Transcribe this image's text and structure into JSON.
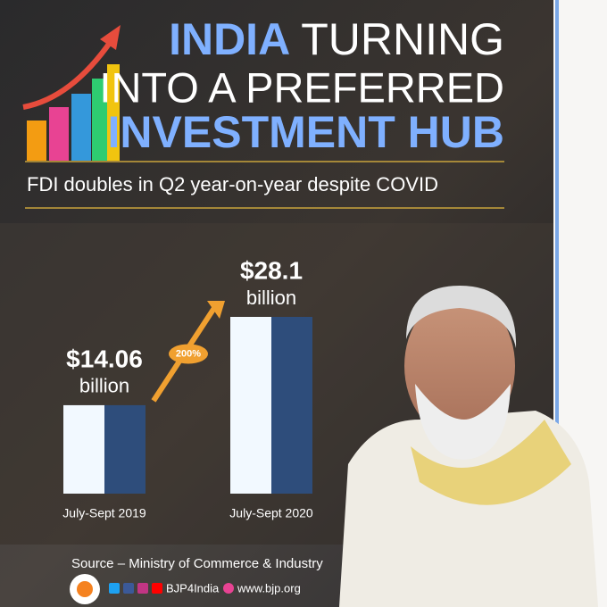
{
  "chart_data": {
    "type": "bar",
    "title_parts": [
      "INDIA",
      "TURNING",
      "INTO A PREFERRED",
      "INVESTMENT HUB"
    ],
    "subtitle": "FDI doubles in Q2 year-on-year despite COVID",
    "categories": [
      "July-Sept 2019",
      "July-Sept 2020"
    ],
    "values": [
      14.06,
      28.1
    ],
    "value_labels": [
      "$14.06",
      "$28.1"
    ],
    "value_unit": "billion",
    "annotation": "200%",
    "bar_colors": [
      "#f2f9ff",
      "#2e4d7b"
    ],
    "source": "Source – Ministry of Commerce & Industry",
    "handle": "BJP4India",
    "website": "www.bjp.org"
  }
}
